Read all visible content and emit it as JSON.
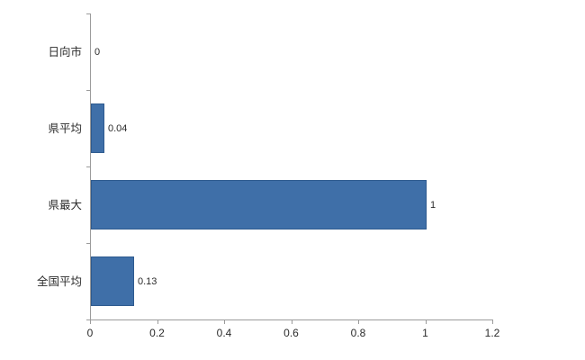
{
  "chart_data": {
    "type": "bar",
    "orientation": "horizontal",
    "title": "",
    "xlabel": "",
    "ylabel": "",
    "categories": [
      "日向市",
      "県平均",
      "県最大",
      "全国平均"
    ],
    "values": [
      0,
      0.04,
      1,
      0.13
    ],
    "value_labels": [
      "0",
      "0.04",
      "1",
      "0.13"
    ],
    "x_ticks": [
      0,
      0.2,
      0.4,
      0.6,
      0.8,
      1,
      1.2
    ],
    "x_tick_labels": [
      "0",
      "0.2",
      "0.4",
      "0.6",
      "0.8",
      "1",
      "1.2"
    ],
    "xlim": [
      0,
      1.2
    ],
    "grid": false,
    "legend": false,
    "bar_color": "#3f6fa8",
    "bar_border_color": "#2e5a8f",
    "axis_color": "#9b9b9b",
    "text_color": "#2b2b2b",
    "background_color": "#ffffff"
  }
}
